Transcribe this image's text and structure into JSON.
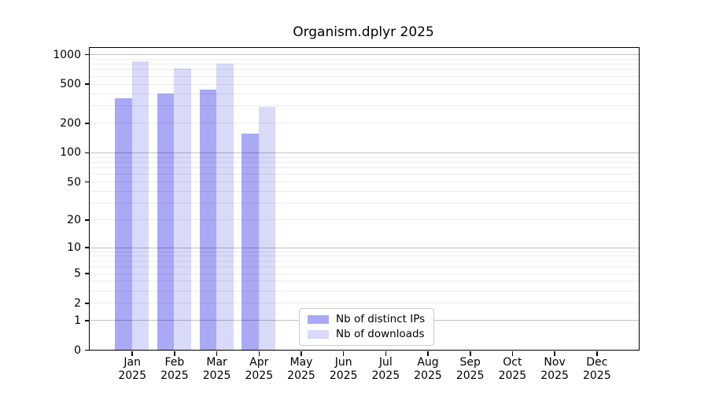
{
  "title": "Organism.dplyr 2025",
  "legend": {
    "items": [
      {
        "label": "Nb of distinct IPs",
        "color": "#a9a9f5"
      },
      {
        "label": "Nb of downloads",
        "color": "#d9d9f9"
      }
    ]
  },
  "chart_data": {
    "type": "bar",
    "title": "Organism.dplyr 2025",
    "xlabel": "",
    "ylabel": "",
    "yscale": "log1p",
    "ylim": [
      0,
      1160
    ],
    "y_tick_labels": [
      0,
      1,
      2,
      5,
      10,
      20,
      50,
      100,
      200,
      500,
      1000
    ],
    "grid": "horizontal; light minor lines each 2-9 per decade, darker lines at decades 1/10/100/1000",
    "legend_position": "inside plot, lower center-left",
    "categories": [
      "Jan 2025",
      "Feb 2025",
      "Mar 2025",
      "Apr 2025",
      "May 2025",
      "Jun 2025",
      "Jul 2025",
      "Aug 2025",
      "Sep 2025",
      "Oct 2025",
      "Nov 2025",
      "Dec 2025"
    ],
    "x_tick_month": [
      "Jan",
      "Feb",
      "Mar",
      "Apr",
      "May",
      "Jun",
      "Jul",
      "Aug",
      "Sep",
      "Oct",
      "Nov",
      "Dec"
    ],
    "x_tick_year": "2025",
    "series": [
      {
        "name": "Nb of distinct IPs",
        "color": "#a9a9f5",
        "values": [
          357,
          396,
          440,
          157,
          null,
          null,
          null,
          null,
          null,
          null,
          null,
          null
        ]
      },
      {
        "name": "Nb of downloads",
        "color": "#d9d9f9",
        "values": [
          845,
          714,
          808,
          289,
          null,
          null,
          null,
          null,
          null,
          null,
          null,
          null
        ]
      }
    ]
  }
}
